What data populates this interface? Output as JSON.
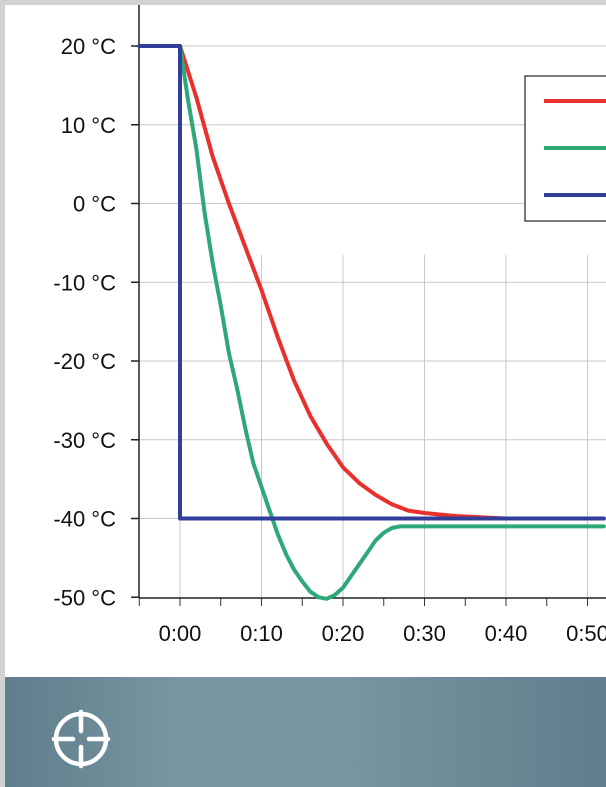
{
  "chart_data": {
    "type": "line",
    "xlabel": "",
    "ylabel": "",
    "y_unit": "°C",
    "y_ticks": [
      "20 °C",
      "10 °C",
      "0 °C",
      "-10 °C",
      "-20 °C",
      "-30 °C",
      "-40 °C",
      "-50 °C"
    ],
    "y_tick_values": [
      20,
      10,
      0,
      -10,
      -20,
      -30,
      -40,
      -50
    ],
    "x_ticks": [
      "0:00",
      "0:10",
      "0:20",
      "0:30",
      "0:40",
      "0:50"
    ],
    "x_tick_values": [
      0,
      10,
      20,
      30,
      40,
      50
    ],
    "xlim": [
      -5,
      51
    ],
    "ylim": [
      -50,
      25
    ],
    "grid": true,
    "legend_position": "top-right",
    "series": [
      {
        "color": "#e8302c",
        "x": [
          0,
          2,
          4,
          6,
          8,
          10,
          12,
          14,
          16,
          18,
          20,
          22,
          24,
          26,
          28,
          30,
          32,
          34,
          36,
          38,
          40,
          42,
          44,
          46,
          48,
          50,
          52
        ],
        "y": [
          20,
          13.5,
          6,
          0,
          -5.5,
          -11,
          -17,
          -22.5,
          -27,
          -30.5,
          -33.5,
          -35.5,
          -37,
          -38.2,
          -39,
          -39.3,
          -39.5,
          -39.7,
          -39.8,
          -39.9,
          -40,
          -40,
          -40,
          -40,
          -40,
          -40,
          -40
        ]
      },
      {
        "color": "#2ea876",
        "x": [
          0,
          1,
          2,
          3,
          4,
          5,
          6,
          7,
          8,
          9,
          10,
          11,
          12,
          13,
          14,
          15,
          16,
          17,
          18,
          19,
          20,
          21,
          22,
          23,
          24,
          25,
          26,
          27,
          28,
          29,
          30,
          31,
          32,
          34,
          36,
          40,
          44,
          48,
          52
        ],
        "y": [
          20,
          13,
          7,
          -1,
          -7.5,
          -13,
          -19,
          -23.5,
          -28.5,
          -33,
          -36,
          -39,
          -42,
          -44.5,
          -46.5,
          -48,
          -49.3,
          -50,
          -50.2,
          -49.7,
          -48.8,
          -47.3,
          -45.8,
          -44.3,
          -42.8,
          -41.8,
          -41.2,
          -41,
          -41,
          -41,
          -41,
          -41,
          -41,
          -41,
          -41,
          -41,
          -41,
          -41,
          -41
        ]
      },
      {
        "color": "#2f3f9a",
        "x": [
          -5,
          0,
          0,
          52
        ],
        "y": [
          20,
          20,
          -40,
          -40
        ]
      }
    ]
  },
  "icons": {
    "crosshair": "crosshair-icon"
  }
}
